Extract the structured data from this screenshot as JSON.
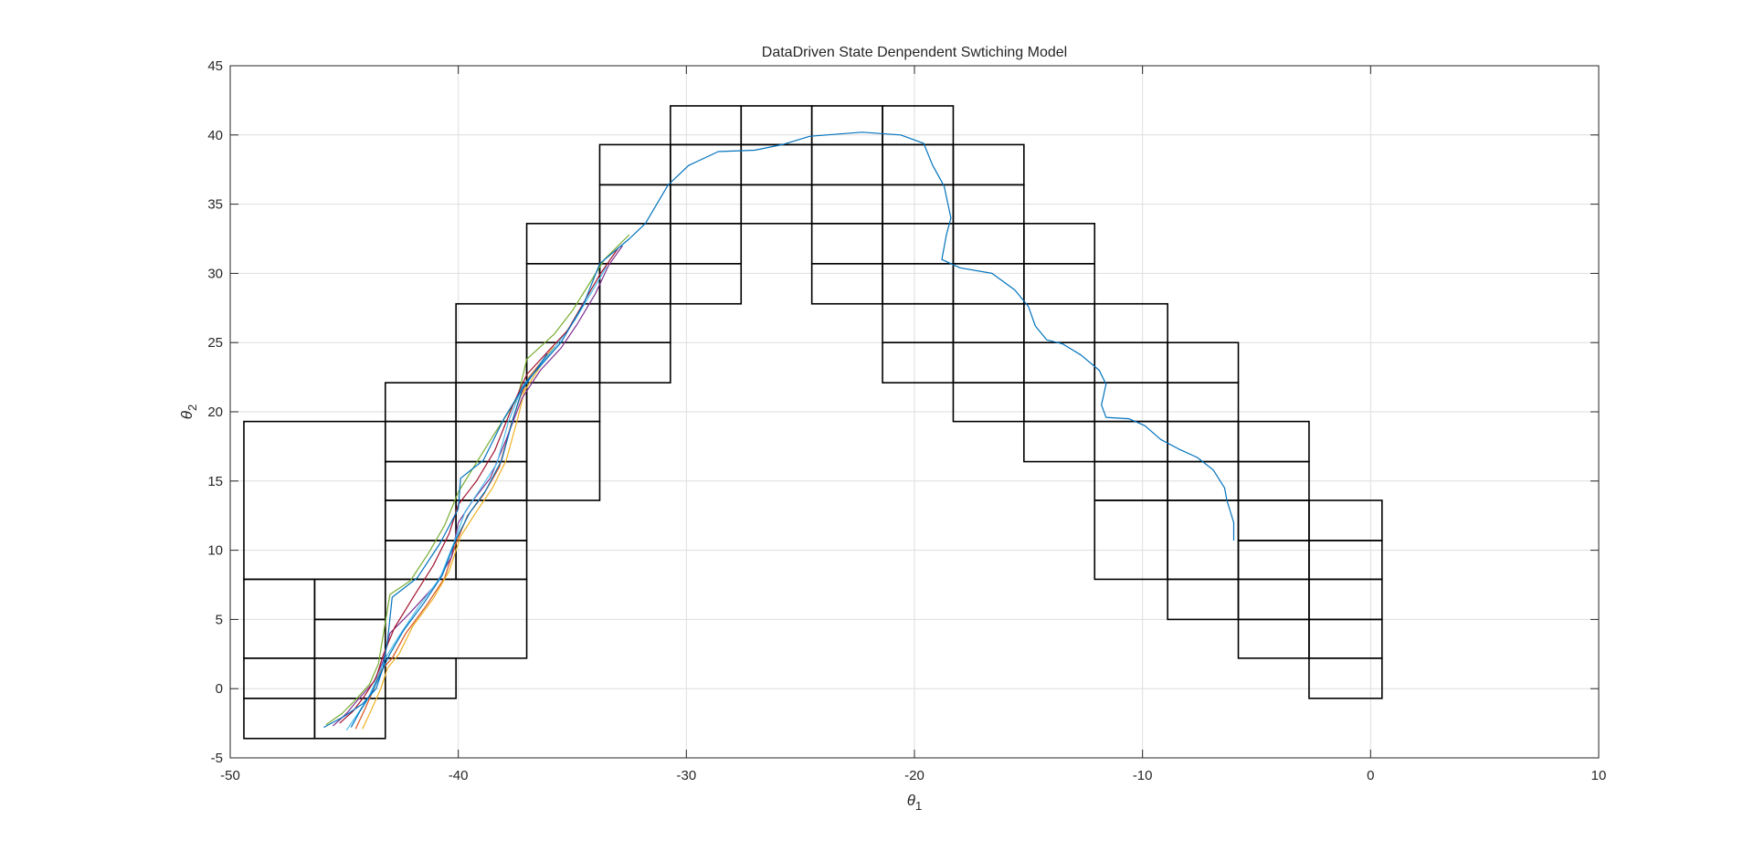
{
  "chart_data": {
    "type": "line",
    "title": "DataDriven State Denpendent Swtiching Model",
    "xlabel": "θ",
    "xlabel_sub": "1",
    "ylabel": "θ",
    "ylabel_sub": "2",
    "xlim": [
      -50,
      10
    ],
    "ylim": [
      -5,
      45
    ],
    "xticks": [
      -50,
      -40,
      -30,
      -20,
      -10,
      0,
      10
    ],
    "yticks": [
      -5,
      0,
      5,
      10,
      15,
      20,
      25,
      30,
      35,
      40,
      45
    ],
    "grid": true,
    "legend": "none",
    "colors": {
      "grid": "#dedede",
      "axes": "#262626",
      "cells": "#000000",
      "trajectories": [
        "#0072bd",
        "#d95319",
        "#edb120",
        "#7e2f8e",
        "#77ac30",
        "#4dbeee",
        "#a2142f"
      ]
    },
    "cells": [
      [
        -49.4,
        -3.6,
        -46.3,
        -0.7
      ],
      [
        -49.4,
        -0.7,
        -46.3,
        2.2
      ],
      [
        -49.4,
        2.2,
        -46.3,
        7.9
      ],
      [
        -46.3,
        -3.6,
        -43.2,
        -0.7
      ],
      [
        -46.3,
        -0.7,
        -43.2,
        2.2
      ],
      [
        -46.3,
        2.2,
        -43.2,
        5.0
      ],
      [
        -46.3,
        5.0,
        -43.2,
        7.9
      ],
      [
        -49.4,
        7.9,
        -43.2,
        19.3
      ],
      [
        -43.2,
        -0.7,
        -40.1,
        2.2
      ],
      [
        -43.2,
        2.2,
        -37.0,
        7.9
      ],
      [
        -43.2,
        7.9,
        -40.1,
        10.7
      ],
      [
        -43.2,
        10.7,
        -40.1,
        13.6
      ],
      [
        -43.2,
        13.6,
        -40.1,
        16.4
      ],
      [
        -43.2,
        16.4,
        -40.1,
        19.3
      ],
      [
        -43.2,
        19.3,
        -40.1,
        22.1
      ],
      [
        -40.1,
        7.9,
        -37.0,
        10.7
      ],
      [
        -40.1,
        10.7,
        -37.0,
        13.6
      ],
      [
        -40.1,
        13.6,
        -37.0,
        16.4
      ],
      [
        -40.1,
        16.4,
        -37.0,
        19.3
      ],
      [
        -37.0,
        13.6,
        -33.8,
        19.3
      ],
      [
        -40.1,
        19.3,
        -37.0,
        22.1
      ],
      [
        -40.1,
        22.1,
        -37.0,
        25.0
      ],
      [
        -40.1,
        25.0,
        -37.0,
        27.8
      ],
      [
        -37.0,
        19.3,
        -33.8,
        22.1
      ],
      [
        -37.0,
        22.1,
        -33.8,
        25.0
      ],
      [
        -37.0,
        25.0,
        -33.8,
        27.8
      ],
      [
        -37.0,
        27.8,
        -33.8,
        30.7
      ],
      [
        -37.0,
        30.7,
        -33.8,
        33.6
      ],
      [
        -33.8,
        22.1,
        -30.7,
        25.0
      ],
      [
        -33.8,
        25.0,
        -30.7,
        27.8
      ],
      [
        -33.8,
        27.8,
        -30.7,
        30.7
      ],
      [
        -33.8,
        30.7,
        -30.7,
        33.6
      ],
      [
        -33.8,
        33.6,
        -30.7,
        36.4
      ],
      [
        -33.8,
        36.4,
        -30.7,
        39.3
      ],
      [
        -30.7,
        27.8,
        -27.6,
        30.7
      ],
      [
        -30.7,
        30.7,
        -27.6,
        33.6
      ],
      [
        -30.7,
        33.6,
        -27.6,
        36.4
      ],
      [
        -30.7,
        36.4,
        -27.6,
        39.3
      ],
      [
        -30.7,
        39.3,
        -27.6,
        42.1
      ],
      [
        -27.6,
        33.6,
        -24.5,
        36.4
      ],
      [
        -27.6,
        36.4,
        -24.5,
        39.3
      ],
      [
        -27.6,
        39.3,
        -24.5,
        42.1
      ],
      [
        -24.5,
        27.8,
        -21.4,
        30.7
      ],
      [
        -24.5,
        30.7,
        -21.4,
        33.6
      ],
      [
        -24.5,
        33.6,
        -21.4,
        36.4
      ],
      [
        -24.5,
        36.4,
        -21.4,
        39.3
      ],
      [
        -24.5,
        39.3,
        -21.4,
        42.1
      ],
      [
        -21.4,
        22.1,
        -18.3,
        25.0
      ],
      [
        -21.4,
        25.0,
        -18.3,
        27.8
      ],
      [
        -21.4,
        27.8,
        -18.3,
        30.7
      ],
      [
        -21.4,
        30.7,
        -18.3,
        33.6
      ],
      [
        -21.4,
        33.6,
        -18.3,
        36.4
      ],
      [
        -21.4,
        36.4,
        -18.3,
        39.3
      ],
      [
        -21.4,
        39.3,
        -18.3,
        42.1
      ],
      [
        -18.3,
        19.3,
        -15.2,
        22.1
      ],
      [
        -18.3,
        22.1,
        -15.2,
        25.0
      ],
      [
        -18.3,
        25.0,
        -15.2,
        27.8
      ],
      [
        -18.3,
        27.8,
        -15.2,
        30.7
      ],
      [
        -18.3,
        30.7,
        -15.2,
        33.6
      ],
      [
        -18.3,
        33.6,
        -15.2,
        36.4
      ],
      [
        -18.3,
        36.4,
        -15.2,
        39.3
      ],
      [
        -15.2,
        16.4,
        -12.1,
        19.3
      ],
      [
        -15.2,
        19.3,
        -12.1,
        22.1
      ],
      [
        -15.2,
        22.1,
        -12.1,
        25.0
      ],
      [
        -15.2,
        25.0,
        -12.1,
        27.8
      ],
      [
        -15.2,
        27.8,
        -12.1,
        30.7
      ],
      [
        -15.2,
        30.7,
        -12.1,
        33.6
      ],
      [
        -12.1,
        7.9,
        -8.9,
        13.6
      ],
      [
        -12.1,
        13.6,
        -8.9,
        16.4
      ],
      [
        -12.1,
        16.4,
        -8.9,
        19.3
      ],
      [
        -12.1,
        19.3,
        -8.9,
        22.1
      ],
      [
        -12.1,
        22.1,
        -8.9,
        25.0
      ],
      [
        -12.1,
        25.0,
        -8.9,
        27.8
      ],
      [
        -8.9,
        5.0,
        -5.8,
        7.9
      ],
      [
        -8.9,
        7.9,
        -5.8,
        13.6
      ],
      [
        -8.9,
        13.6,
        -5.8,
        16.4
      ],
      [
        -8.9,
        16.4,
        -5.8,
        19.3
      ],
      [
        -8.9,
        19.3,
        -5.8,
        22.1
      ],
      [
        -8.9,
        22.1,
        -5.8,
        25.0
      ],
      [
        -5.8,
        2.2,
        -2.7,
        5.0
      ],
      [
        -5.8,
        5.0,
        -2.7,
        7.9
      ],
      [
        -5.8,
        7.9,
        -2.7,
        10.7
      ],
      [
        -5.8,
        10.7,
        -2.7,
        13.6
      ],
      [
        -5.8,
        13.6,
        -2.7,
        16.4
      ],
      [
        -5.8,
        16.4,
        -2.7,
        19.3
      ],
      [
        -2.7,
        -0.7,
        0.5,
        2.2
      ],
      [
        -2.7,
        2.2,
        0.5,
        5.0
      ],
      [
        -2.7,
        5.0,
        0.5,
        7.9
      ],
      [
        -2.7,
        7.9,
        0.5,
        10.7
      ],
      [
        -2.7,
        10.7,
        0.5,
        13.6
      ]
    ],
    "series": [
      {
        "values": [
          [
            -45.9,
            -2.8
          ],
          [
            -45.0,
            -2.0
          ],
          [
            -44.2,
            -1.1
          ],
          [
            -43.6,
            0.0
          ],
          [
            -43.3,
            1.5
          ],
          [
            -43.1,
            3.5
          ],
          [
            -42.9,
            6.6
          ],
          [
            -41.8,
            8.0
          ],
          [
            -40.8,
            10.5
          ],
          [
            -40.0,
            13.0
          ],
          [
            -39.9,
            15.2
          ],
          [
            -38.9,
            16.5
          ],
          [
            -38.0,
            19.5
          ],
          [
            -37.0,
            22.2
          ],
          [
            -35.5,
            25.0
          ],
          [
            -34.5,
            27.8
          ],
          [
            -33.8,
            30.7
          ],
          [
            -32.5,
            32.5
          ],
          [
            -31.8,
            33.6
          ],
          [
            -30.8,
            36.4
          ],
          [
            -29.9,
            37.8
          ],
          [
            -28.6,
            38.8
          ],
          [
            -27.0,
            38.9
          ],
          [
            -25.8,
            39.3
          ],
          [
            -24.6,
            39.9
          ],
          [
            -22.3,
            40.2
          ],
          [
            -20.6,
            40.0
          ],
          [
            -19.6,
            39.4
          ],
          [
            -19.2,
            37.8
          ],
          [
            -18.7,
            36.3
          ],
          [
            -18.4,
            34.0
          ],
          [
            -18.6,
            32.8
          ],
          [
            -18.8,
            31.0
          ],
          [
            -18.0,
            30.4
          ],
          [
            -16.6,
            30.0
          ],
          [
            -15.6,
            28.8
          ],
          [
            -15.0,
            27.6
          ],
          [
            -14.7,
            26.2
          ],
          [
            -14.2,
            25.2
          ],
          [
            -13.5,
            24.9
          ],
          [
            -12.7,
            24.1
          ],
          [
            -11.9,
            23.0
          ],
          [
            -11.6,
            22.0
          ],
          [
            -11.8,
            20.5
          ],
          [
            -11.6,
            19.6
          ],
          [
            -10.6,
            19.5
          ],
          [
            -9.9,
            19.0
          ],
          [
            -9.2,
            18.0
          ],
          [
            -8.4,
            17.3
          ],
          [
            -7.6,
            16.7
          ],
          [
            -6.9,
            15.8
          ],
          [
            -6.4,
            14.5
          ],
          [
            -6.3,
            13.6
          ],
          [
            -6.0,
            12.0
          ],
          [
            -6.0,
            10.7
          ]
        ]
      },
      {
        "values": [
          [
            -44.5,
            -2.9
          ],
          [
            -44.1,
            -1.5
          ],
          [
            -43.7,
            0.0
          ],
          [
            -43.4,
            1.3
          ],
          [
            -42.9,
            2.2
          ],
          [
            -42.3,
            4.0
          ],
          [
            -41.4,
            6.0
          ],
          [
            -40.6,
            8.0
          ],
          [
            -40.1,
            10.5
          ],
          [
            -39.6,
            12.5
          ],
          [
            -38.9,
            14.0
          ],
          [
            -38.2,
            16.0
          ],
          [
            -37.7,
            19.0
          ],
          [
            -37.3,
            21.0
          ],
          [
            -36.9,
            22.5
          ],
          [
            -36.4,
            23.5
          ],
          [
            -35.9,
            24.5
          ]
        ]
      },
      {
        "values": [
          [
            -44.2,
            -2.9
          ],
          [
            -43.8,
            -1.5
          ],
          [
            -43.4,
            0.0
          ],
          [
            -43.1,
            1.5
          ],
          [
            -42.6,
            2.5
          ],
          [
            -42.0,
            4.5
          ],
          [
            -41.1,
            6.5
          ],
          [
            -40.4,
            8.5
          ],
          [
            -39.9,
            11.0
          ],
          [
            -39.2,
            12.8
          ],
          [
            -38.5,
            14.5
          ],
          [
            -37.9,
            16.5
          ],
          [
            -37.4,
            19.5
          ],
          [
            -37.1,
            21.5
          ],
          [
            -36.6,
            22.8
          ],
          [
            -36.2,
            23.8
          ],
          [
            -35.8,
            24.7
          ]
        ]
      },
      {
        "values": [
          [
            -45.5,
            -2.7
          ],
          [
            -44.9,
            -1.8
          ],
          [
            -44.4,
            -0.8
          ],
          [
            -43.7,
            0.5
          ],
          [
            -43.3,
            2.0
          ],
          [
            -43.0,
            4.0
          ],
          [
            -42.1,
            5.5
          ],
          [
            -41.0,
            7.5
          ],
          [
            -40.3,
            9.5
          ],
          [
            -40.0,
            12.0
          ],
          [
            -39.4,
            13.5
          ],
          [
            -38.6,
            15.2
          ],
          [
            -37.9,
            18.0
          ],
          [
            -37.2,
            21.0
          ],
          [
            -36.4,
            23.0
          ],
          [
            -35.5,
            24.6
          ],
          [
            -34.8,
            26.3
          ],
          [
            -34.0,
            28.5
          ],
          [
            -33.4,
            30.6
          ],
          [
            -32.8,
            32.0
          ]
        ]
      },
      {
        "values": [
          [
            -45.8,
            -2.6
          ],
          [
            -45.1,
            -1.8
          ],
          [
            -44.5,
            -0.8
          ],
          [
            -43.9,
            0.3
          ],
          [
            -43.5,
            1.8
          ],
          [
            -43.0,
            6.8
          ],
          [
            -42.1,
            7.8
          ],
          [
            -41.3,
            9.8
          ],
          [
            -40.6,
            11.8
          ],
          [
            -40.0,
            14.2
          ],
          [
            -39.4,
            15.8
          ],
          [
            -38.5,
            18.2
          ],
          [
            -37.4,
            21.0
          ],
          [
            -37.0,
            23.8
          ],
          [
            -35.8,
            25.6
          ],
          [
            -35.0,
            27.3
          ],
          [
            -34.2,
            29.4
          ],
          [
            -33.6,
            31.0
          ],
          [
            -32.5,
            32.8
          ]
        ]
      },
      {
        "values": [
          [
            -44.9,
            -3.0
          ],
          [
            -44.4,
            -1.8
          ],
          [
            -43.9,
            -0.5
          ],
          [
            -43.5,
            1.0
          ],
          [
            -43.2,
            2.2
          ],
          [
            -42.6,
            3.8
          ],
          [
            -41.7,
            6.0
          ],
          [
            -40.8,
            8.0
          ],
          [
            -40.2,
            10.5
          ],
          [
            -39.7,
            12.8
          ],
          [
            -39.0,
            14.5
          ],
          [
            -38.3,
            16.3
          ],
          [
            -37.8,
            19.3
          ],
          [
            -37.2,
            21.8
          ],
          [
            -36.5,
            23.2
          ],
          [
            -35.7,
            24.8
          ],
          [
            -34.9,
            26.6
          ],
          [
            -34.1,
            28.8
          ],
          [
            -33.5,
            30.5
          ]
        ]
      },
      {
        "values": [
          [
            -45.2,
            -2.5
          ],
          [
            -44.6,
            -1.6
          ],
          [
            -44.1,
            -0.5
          ],
          [
            -43.6,
            0.8
          ],
          [
            -43.3,
            2.4
          ],
          [
            -42.8,
            4.4
          ],
          [
            -41.9,
            6.8
          ],
          [
            -41.1,
            8.9
          ],
          [
            -40.4,
            11.2
          ],
          [
            -40.0,
            13.3
          ],
          [
            -39.2,
            15.0
          ],
          [
            -38.4,
            17.2
          ],
          [
            -37.6,
            20.5
          ],
          [
            -37.0,
            22.7
          ],
          [
            -36.1,
            24.3
          ],
          [
            -35.2,
            25.9
          ],
          [
            -34.5,
            27.9
          ],
          [
            -33.8,
            29.9
          ],
          [
            -33.0,
            31.8
          ]
        ]
      },
      {
        "values": [
          [
            -44.7,
            -2.8
          ],
          [
            -44.3,
            -1.6
          ],
          [
            -43.8,
            -0.3
          ],
          [
            -43.4,
            1.1
          ],
          [
            -43.0,
            2.5
          ],
          [
            -42.4,
            4.2
          ],
          [
            -41.5,
            6.2
          ],
          [
            -40.7,
            8.2
          ],
          [
            -40.1,
            10.8
          ],
          [
            -39.5,
            12.7
          ],
          [
            -38.8,
            14.3
          ],
          [
            -38.1,
            16.5
          ],
          [
            -37.6,
            19.5
          ],
          [
            -37.2,
            21.6
          ],
          [
            -36.6,
            23.0
          ],
          [
            -36.1,
            24.2
          ]
        ]
      }
    ]
  }
}
